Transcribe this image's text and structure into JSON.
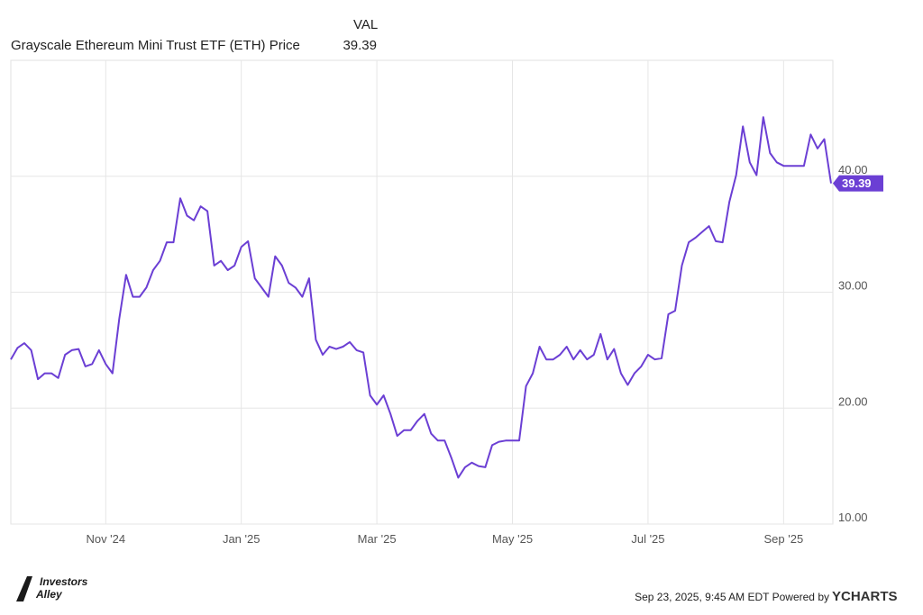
{
  "chart_data": {
    "type": "line",
    "column_header": "VAL",
    "footer": "Sep 23, 2025, 9:45 AM EDT Powered by",
    "brand": "YCHARTS",
    "logo": [
      "Investors",
      "Alley"
    ],
    "categories": [
      null,
      null,
      null,
      null,
      null,
      null,
      null,
      null,
      null,
      null,
      null,
      null,
      null,
      null,
      "Nov '24",
      null,
      null,
      null,
      null,
      null,
      null,
      null,
      null,
      null,
      null,
      null,
      null,
      null,
      null,
      null,
      null,
      null,
      null,
      null,
      "Jan '25",
      null,
      null,
      null,
      null,
      null,
      null,
      null,
      null,
      null,
      null,
      null,
      null,
      null,
      null,
      null,
      null,
      null,
      null,
      null,
      "Mar '25",
      null,
      null,
      null,
      null,
      null,
      null,
      null,
      null,
      null,
      null,
      null,
      null,
      null,
      null,
      null,
      null,
      null,
      null,
      null,
      "May '25",
      null,
      null,
      null,
      null,
      null,
      null,
      null,
      null,
      null,
      null,
      null,
      null,
      null,
      null,
      null,
      null,
      null,
      null,
      null,
      "Jul '25",
      null,
      null,
      null,
      null,
      null,
      null,
      null,
      null,
      null,
      null,
      null,
      null,
      null,
      null,
      null,
      null,
      null,
      null,
      null,
      "Sep '25",
      null,
      null,
      null,
      null,
      null,
      null,
      null
    ],
    "series": [
      {
        "name": "Grayscale Ethereum Mini Trust ETF (ETH) Price",
        "color": "#6b3fd4",
        "values": [
          24.2,
          25.2,
          25.6,
          25,
          22.5,
          23,
          23,
          22.6,
          24.6,
          25,
          25.1,
          23.6,
          23.8,
          25,
          23.8,
          23,
          27.7,
          31.5,
          29.6,
          29.6,
          30.4,
          31.9,
          32.7,
          34.3,
          34.3,
          38.1,
          36.6,
          36.2,
          37.4,
          37,
          32.3,
          32.7,
          31.9,
          32.3,
          33.9,
          34.4,
          31.2,
          30.4,
          29.6,
          33.1,
          32.3,
          30.8,
          30.4,
          29.6,
          31.2,
          25.9,
          24.6,
          25.3,
          25.1,
          25.3,
          25.7,
          25,
          24.8,
          21.1,
          20.3,
          21.1,
          19.5,
          17.6,
          18.1,
          18.1,
          18.9,
          19.5,
          17.8,
          17.2,
          17.2,
          15.7,
          14,
          14.9,
          15.3,
          15,
          14.9,
          16.8,
          17.1,
          17.2,
          17.2,
          17.2,
          21.9,
          23,
          25.3,
          24.2,
          24.2,
          24.6,
          25.3,
          24.2,
          25,
          24.2,
          24.6,
          26.4,
          24.2,
          25.1,
          23,
          22,
          23,
          23.6,
          24.6,
          24.2,
          24.3,
          28.1,
          28.4,
          32.3,
          34.3,
          34.7,
          35.2,
          35.7,
          34.4,
          34.3,
          37.8,
          40.1,
          44.3,
          41.2,
          40.1,
          45.1,
          42,
          41.2,
          40.9,
          40.9,
          40.9,
          40.9,
          43.6,
          42.4,
          43.2,
          39.39
        ]
      }
    ],
    "ylim": [
      10,
      50
    ],
    "yticks": [
      {
        "value": 10,
        "label": "10.00"
      },
      {
        "value": 20,
        "label": "20.00"
      },
      {
        "value": 30,
        "label": "30.00"
      },
      {
        "value": 40,
        "label": "40.00"
      }
    ],
    "grid": true
  }
}
